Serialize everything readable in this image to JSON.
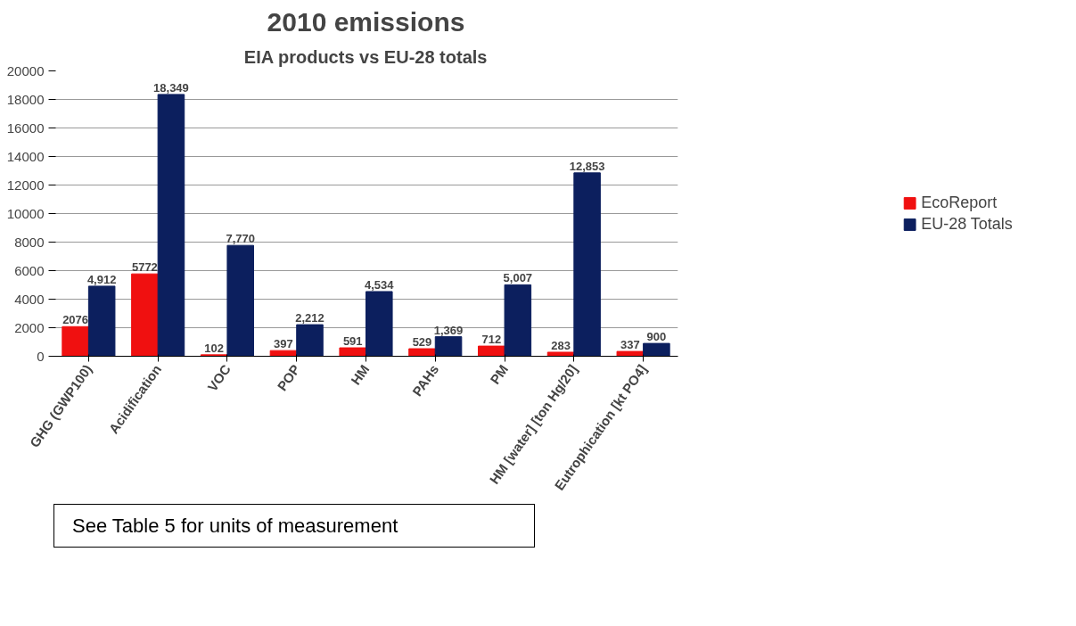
{
  "chart_data": {
    "type": "bar",
    "title": "2010 emissions",
    "subtitle": "EIA products vs EU-28 totals",
    "categories": [
      "GHG (GWP100)",
      "Acidification",
      "VOC",
      "POP",
      "HM",
      "PAHs",
      "PM",
      "HM [water] [ton Hg/20]",
      "Eutrophication [kt PO4]"
    ],
    "series": [
      {
        "name": "EcoReport",
        "color": "#f01010",
        "values": [
          2076,
          5772,
          102,
          397,
          591,
          529,
          712,
          283,
          337
        ],
        "value_labels": [
          "2076",
          "5772",
          "102",
          "397",
          "591",
          "529",
          "712",
          "283",
          "337"
        ]
      },
      {
        "name": "EU-28 Totals",
        "color": "#0c1f5e",
        "values": [
          4912,
          18349,
          7770,
          2212,
          4534,
          1369,
          5007,
          12853,
          900
        ],
        "value_labels": [
          "4,912",
          "18,349",
          "7,770",
          "2,212",
          "4,534",
          "1,369",
          "5,007",
          "12,853",
          "900"
        ]
      }
    ],
    "ylim": [
      0,
      20000
    ],
    "yticks": [
      0,
      2000,
      4000,
      6000,
      8000,
      10000,
      12000,
      14000,
      16000,
      18000,
      20000
    ],
    "grid": "y",
    "legend": "right",
    "annotations": [
      "See Table 5 for units of measurement"
    ]
  }
}
